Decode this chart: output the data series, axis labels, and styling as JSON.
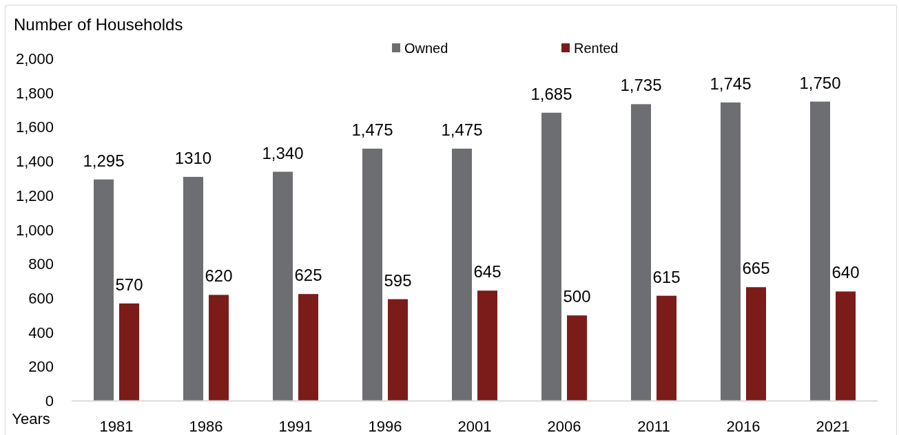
{
  "chart_data": {
    "type": "bar",
    "ylabel": "Number of Households",
    "xlabel": "Years",
    "categories": [
      "1981",
      "1986",
      "1991",
      "1996",
      "2001",
      "2006",
      "2011",
      "2016",
      "2021"
    ],
    "series": [
      {
        "name": "Owned",
        "color": "#6d6e71",
        "values": [
          1295,
          1310,
          1340,
          1475,
          1475,
          1685,
          1735,
          1745,
          1750
        ],
        "value_labels": [
          "1,295",
          "1310",
          "1,340",
          "1,475",
          "1,475",
          "1,685",
          "1,735",
          "1,745",
          "1,750"
        ]
      },
      {
        "name": "Rented",
        "color": "#7b1c19",
        "values": [
          570,
          620,
          625,
          595,
          645,
          500,
          615,
          665,
          640
        ],
        "value_labels": [
          "570",
          "620",
          "625",
          "595",
          "645",
          "500",
          "615",
          "665",
          "640"
        ]
      }
    ],
    "ylim": [
      0,
      2000
    ],
    "yticks": [
      0,
      200,
      400,
      600,
      800,
      {
        "value": 1000,
        "label": "1,000"
      },
      {
        "value": 1200,
        "label": "1,200"
      },
      {
        "value": 1400,
        "label": "1,400"
      },
      {
        "value": 1600,
        "label": "1,600"
      },
      {
        "value": 1800,
        "label": "1,800"
      },
      {
        "value": 2000,
        "label": "2,000"
      }
    ],
    "legend": "top",
    "grid": false
  }
}
